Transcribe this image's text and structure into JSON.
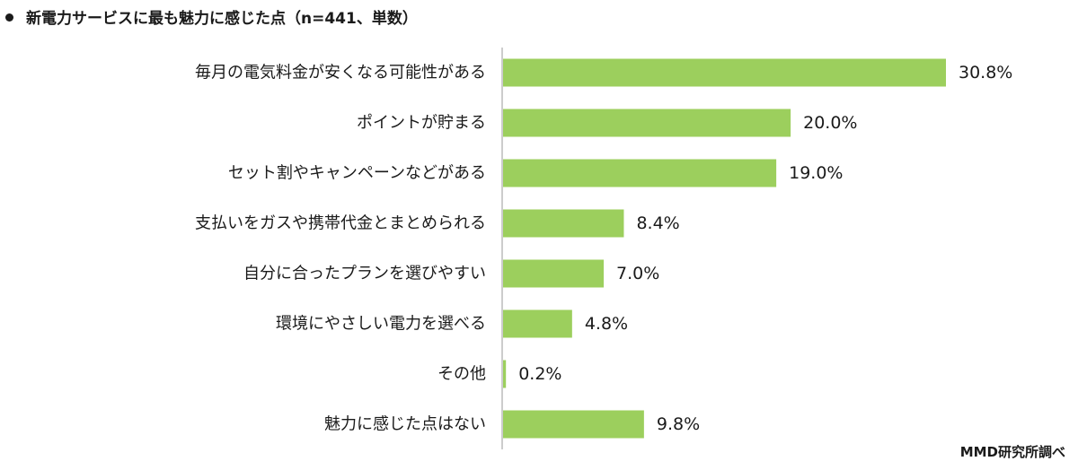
{
  "chart_data": {
    "type": "bar",
    "orientation": "horizontal",
    "title": "新電力サービスに最も魅力に感じた点（n=441、単数）",
    "categories": [
      "毎月の電気料金が安くなる可能性がある",
      "ポイントが貯まる",
      "セット割やキャンペーンなどがある",
      "支払いをガスや携帯代金とまとめられる",
      "自分に合ったプランを選びやすい",
      "環境にやさしい電力を選べる",
      "その他",
      "魅力に感じた点はない"
    ],
    "values": [
      30.8,
      20.0,
      19.0,
      8.4,
      7.0,
      4.8,
      0.2,
      9.8
    ],
    "value_labels": [
      "30.8%",
      "20.0%",
      "19.0%",
      "8.4%",
      "7.0%",
      "4.8%",
      "0.2%",
      "9.8%"
    ],
    "xlim": [
      0,
      30.8
    ],
    "grid": false,
    "bar_color": "#9ccf5d",
    "axis_color": "#999999"
  },
  "source": "MMD研究所調べ"
}
